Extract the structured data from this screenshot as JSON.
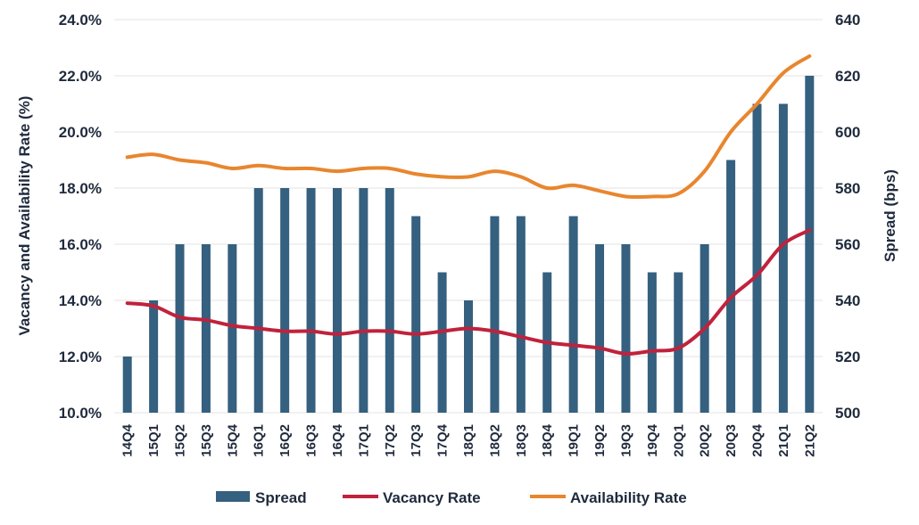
{
  "chart_data": {
    "type": "bar",
    "categories": [
      "14Q4",
      "15Q1",
      "15Q2",
      "15Q3",
      "15Q4",
      "16Q1",
      "16Q2",
      "16Q3",
      "16Q4",
      "17Q1",
      "17Q2",
      "17Q3",
      "17Q4",
      "18Q1",
      "18Q2",
      "18Q3",
      "18Q4",
      "19Q1",
      "19Q2",
      "19Q3",
      "19Q4",
      "20Q1",
      "20Q2",
      "20Q3",
      "20Q4",
      "21Q1",
      "21Q2"
    ],
    "series": [
      {
        "name": "Spread",
        "type": "bar",
        "axis": "right",
        "color": "#35607f",
        "values": [
          520,
          540,
          560,
          560,
          560,
          580,
          580,
          580,
          580,
          580,
          580,
          570,
          550,
          540,
          570,
          570,
          550,
          570,
          560,
          560,
          550,
          550,
          560,
          590,
          610,
          610,
          620
        ]
      },
      {
        "name": "Vacancy Rate",
        "type": "line",
        "axis": "left",
        "color": "#c0223c",
        "values": [
          13.9,
          13.8,
          13.4,
          13.3,
          13.1,
          13.0,
          12.9,
          12.9,
          12.8,
          12.9,
          12.9,
          12.8,
          12.9,
          13.0,
          12.9,
          12.7,
          12.5,
          12.4,
          12.3,
          12.1,
          12.2,
          12.3,
          13.0,
          14.1,
          14.9,
          16.0,
          16.5
        ]
      },
      {
        "name": "Availability Rate",
        "type": "line",
        "axis": "left",
        "color": "#e8862e",
        "values": [
          19.1,
          19.2,
          19.0,
          18.9,
          18.7,
          18.8,
          18.7,
          18.7,
          18.6,
          18.7,
          18.7,
          18.5,
          18.4,
          18.4,
          18.6,
          18.4,
          18.0,
          18.1,
          17.9,
          17.7,
          17.7,
          17.8,
          18.6,
          20.0,
          21.0,
          22.1,
          22.7
        ]
      }
    ],
    "y_left": {
      "label": "Vacancy and Availability Rate (%)",
      "range": [
        10,
        24
      ],
      "ticks": [
        "10.0%",
        "12.0%",
        "14.0%",
        "16.0%",
        "18.0%",
        "20.0%",
        "22.0%",
        "24.0%"
      ]
    },
    "y_right": {
      "label": "Spread (bps)",
      "range": [
        500,
        640
      ],
      "ticks": [
        "500",
        "520",
        "540",
        "560",
        "580",
        "600",
        "620",
        "640"
      ]
    },
    "grid": true,
    "legend_position": "bottom"
  }
}
